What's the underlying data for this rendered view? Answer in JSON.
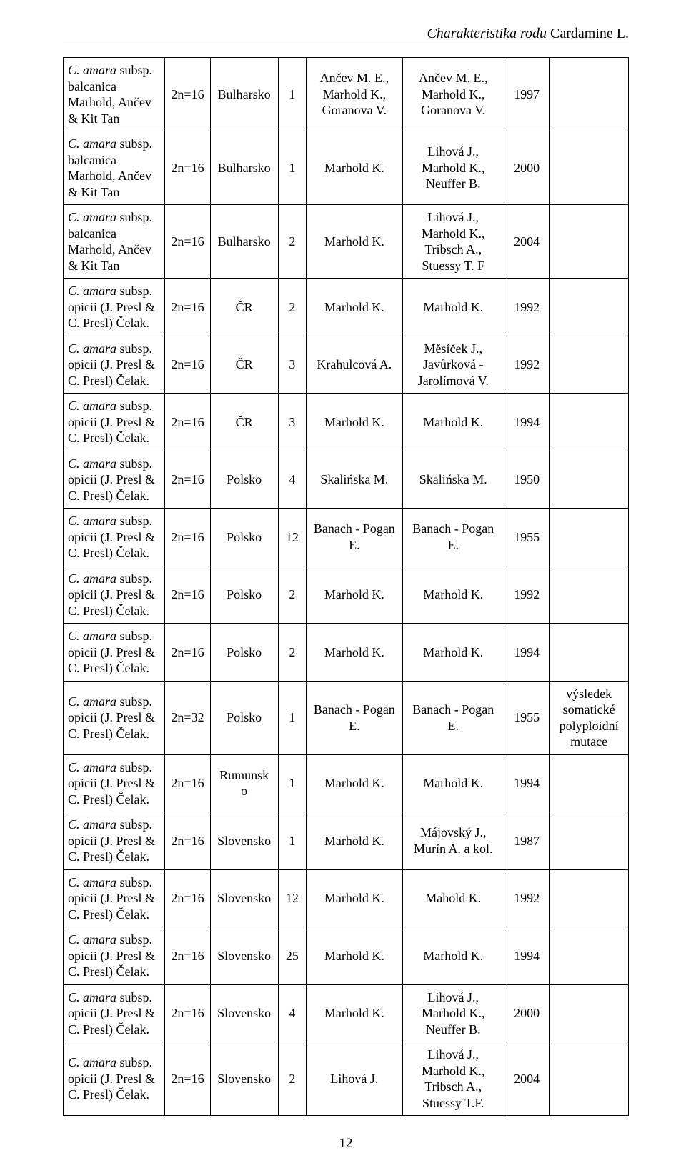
{
  "running_head": {
    "prefix": "Charakteristika rodu ",
    "genus": "Cardamine L."
  },
  "columns": {
    "widths_pct": [
      18,
      8,
      12,
      5,
      17,
      18,
      8,
      14
    ]
  },
  "rows": [
    {
      "taxon_italic": "C. amara",
      "taxon_rest": " subsp. balcanica Marhold, Ančev & Kit Tan",
      "ploidy": "2n=16",
      "country": "Bulharsko",
      "n": "1",
      "ref1": "Ančev M. E., Marhold K., Goranova V.",
      "ref2": "Ančev M. E., Marhold K., Goranova V.",
      "year": "1997",
      "note": ""
    },
    {
      "taxon_italic": "C. amara",
      "taxon_rest": " subsp. balcanica Marhold, Ančev & Kit Tan",
      "ploidy": "2n=16",
      "country": "Bulharsko",
      "n": "1",
      "ref1": "Marhold K.",
      "ref2": "Lihová J., Marhold K., Neuffer B.",
      "year": "2000",
      "note": ""
    },
    {
      "taxon_italic": "C. amara",
      "taxon_rest": " subsp. balcanica Marhold, Ančev & Kit Tan",
      "ploidy": "2n=16",
      "country": "Bulharsko",
      "n": "2",
      "ref1": "Marhold K.",
      "ref2": "Lihová J., Marhold K., Tribsch A., Stuessy T. F",
      "year": "2004",
      "note": ""
    },
    {
      "taxon_italic": "C. amara",
      "taxon_rest": " subsp. opicii (J. Presl & C. Presl) Čelak.",
      "ploidy": "2n=16",
      "country": "ČR",
      "n": "2",
      "ref1": "Marhold K.",
      "ref2": "Marhold K.",
      "year": "1992",
      "note": ""
    },
    {
      "taxon_italic": "C. amara",
      "taxon_rest": " subsp. opicii (J. Presl & C. Presl) Čelak.",
      "ploidy": "2n=16",
      "country": "ČR",
      "n": "3",
      "ref1": "Krahulcová A.",
      "ref2": "Měsíček J., Javůrková - Jarolímová V.",
      "year": "1992",
      "note": ""
    },
    {
      "taxon_italic": "C. amara",
      "taxon_rest": " subsp. opicii (J. Presl & C. Presl) Čelak.",
      "ploidy": "2n=16",
      "country": "ČR",
      "n": "3",
      "ref1": "Marhold K.",
      "ref2": "Marhold K.",
      "year": "1994",
      "note": ""
    },
    {
      "taxon_italic": "C. amara",
      "taxon_rest": " subsp. opicii (J. Presl & C. Presl) Čelak.",
      "ploidy": "2n=16",
      "country": "Polsko",
      "n": "4",
      "ref1": "Skalińska M.",
      "ref2": "Skalińska M.",
      "year": "1950",
      "note": ""
    },
    {
      "taxon_italic": "C. amara",
      "taxon_rest": " subsp. opicii (J. Presl & C. Presl) Čelak.",
      "ploidy": "2n=16",
      "country": "Polsko",
      "n": "12",
      "ref1": "Banach - Pogan E.",
      "ref2": "Banach - Pogan E.",
      "year": "1955",
      "note": ""
    },
    {
      "taxon_italic": "C. amara",
      "taxon_rest": " subsp. opicii (J. Presl & C. Presl) Čelak.",
      "ploidy": "2n=16",
      "country": "Polsko",
      "n": "2",
      "ref1": "Marhold K.",
      "ref2": "Marhold K.",
      "year": "1992",
      "note": ""
    },
    {
      "taxon_italic": "C. amara",
      "taxon_rest": " subsp. opicii (J. Presl & C. Presl) Čelak.",
      "ploidy": "2n=16",
      "country": "Polsko",
      "n": "2",
      "ref1": "Marhold K.",
      "ref2": "Marhold K.",
      "year": "1994",
      "note": ""
    },
    {
      "taxon_italic": "C. amara",
      "taxon_rest": " subsp. opicii (J. Presl & C. Presl) Čelak.",
      "ploidy": "2n=32",
      "country": "Polsko",
      "n": "1",
      "ref1": "Banach - Pogan E.",
      "ref2": "Banach - Pogan E.",
      "year": "1955",
      "note": "výsledek somatické polyploidní mutace"
    },
    {
      "taxon_italic": "C. amara",
      "taxon_rest": " subsp. opicii (J. Presl & C. Presl) Čelak.",
      "ploidy": "2n=16",
      "country": "Rumunsko",
      "n": "1",
      "ref1": "Marhold K.",
      "ref2": "Marhold K.",
      "year": "1994",
      "note": ""
    },
    {
      "taxon_italic": "C. amara",
      "taxon_rest": " subsp. opicii (J. Presl & C. Presl) Čelak.",
      "ploidy": "2n=16",
      "country": "Slovensko",
      "n": "1",
      "ref1": "Marhold K.",
      "ref2": "Májovský J., Murín A. a kol.",
      "year": "1987",
      "note": ""
    },
    {
      "taxon_italic": "C. amara",
      "taxon_rest": " subsp. opicii (J. Presl & C. Presl) Čelak.",
      "ploidy": "2n=16",
      "country": "Slovensko",
      "n": "12",
      "ref1": "Marhold K.",
      "ref2": "Mahold K.",
      "year": "1992",
      "note": ""
    },
    {
      "taxon_italic": "C. amara",
      "taxon_rest": " subsp. opicii (J. Presl & C. Presl) Čelak.",
      "ploidy": "2n=16",
      "country": "Slovensko",
      "n": "25",
      "ref1": "Marhold K.",
      "ref2": "Marhold K.",
      "year": "1994",
      "note": ""
    },
    {
      "taxon_italic": "C. amara",
      "taxon_rest": " subsp. opicii (J. Presl & C. Presl) Čelak.",
      "ploidy": "2n=16",
      "country": "Slovensko",
      "n": "4",
      "ref1": "Marhold K.",
      "ref2": "Lihová J., Marhold K., Neuffer B.",
      "year": "2000",
      "note": ""
    },
    {
      "taxon_italic": "C. amara",
      "taxon_rest": " subsp. opicii (J. Presl & C. Presl) Čelak.",
      "ploidy": "2n=16",
      "country": "Slovensko",
      "n": "2",
      "ref1": "Lihová J.",
      "ref2": "Lihová J., Marhold K., Tribsch A., Stuessy T.F.",
      "year": "2004",
      "note": ""
    }
  ],
  "page_number": "12"
}
